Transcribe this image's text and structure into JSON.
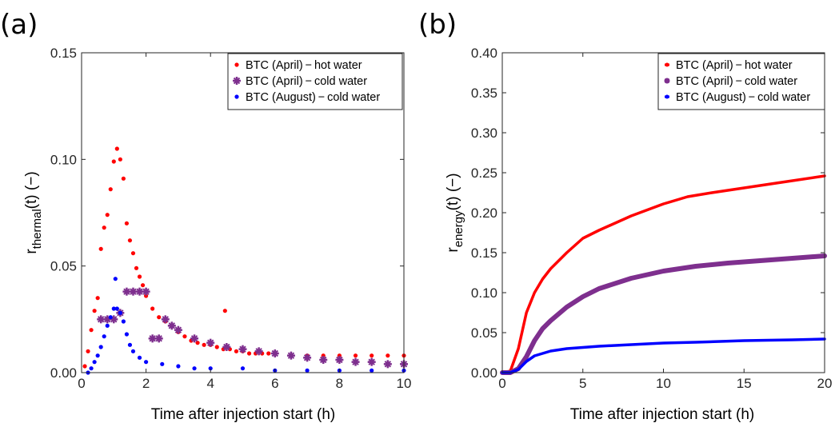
{
  "chart_data": [
    {
      "type": "scatter",
      "panel_label": "(a)",
      "xlabel": "Time after injection start",
      "xunit": "(h)",
      "ylabel_base": "r",
      "ylabel_sub": "thermal",
      "ylabel_arg": "(t)",
      "ylabel_unit": "(−)",
      "xlim": [
        0,
        10
      ],
      "ylim": [
        0,
        0.15
      ],
      "xticks": [
        "0",
        "2",
        "4",
        "6",
        "8",
        "10"
      ],
      "yticks": [
        "0.00",
        "0.05",
        "0.10",
        "0.15"
      ],
      "grid": false,
      "legend_position": "top-right",
      "series": [
        {
          "name": "BTC (April) − hot water",
          "color": "#ff0000",
          "marker": "dot",
          "x": [
            0.1,
            0.2,
            0.3,
            0.4,
            0.5,
            0.6,
            0.7,
            0.8,
            0.9,
            1.0,
            1.1,
            1.2,
            1.3,
            1.4,
            1.5,
            1.6,
            1.7,
            1.8,
            1.9,
            2.0,
            2.2,
            2.4,
            2.6,
            2.8,
            3.0,
            3.2,
            3.4,
            3.6,
            3.8,
            4.0,
            4.2,
            4.4,
            4.45,
            4.6,
            4.8,
            5.0,
            5.2,
            5.4,
            5.6,
            5.8,
            6.0,
            6.5,
            7.0,
            7.5,
            8.0,
            8.5,
            9.0,
            9.5,
            10.0
          ],
          "y": [
            0.003,
            0.01,
            0.02,
            0.029,
            0.035,
            0.058,
            0.068,
            0.074,
            0.086,
            0.099,
            0.105,
            0.1,
            0.091,
            0.07,
            0.062,
            0.056,
            0.049,
            0.045,
            0.041,
            0.036,
            0.03,
            0.026,
            0.024,
            0.022,
            0.019,
            0.017,
            0.015,
            0.014,
            0.013,
            0.013,
            0.012,
            0.011,
            0.029,
            0.011,
            0.01,
            0.01,
            0.009,
            0.009,
            0.009,
            0.009,
            0.009,
            0.008,
            0.008,
            0.008,
            0.008,
            0.008,
            0.008,
            0.008,
            0.008
          ]
        },
        {
          "name": "BTC (April) − cold water",
          "color": "#7e2f8e",
          "marker": "star",
          "x": [
            0.6,
            0.8,
            1.0,
            1.2,
            1.4,
            1.6,
            1.8,
            2.0,
            2.2,
            2.4,
            2.6,
            2.8,
            3.0,
            3.5,
            4.0,
            4.5,
            5.0,
            5.5,
            6.0,
            6.5,
            7.0,
            7.5,
            8.0,
            8.5,
            9.0,
            9.5,
            10.0
          ],
          "y": [
            0.025,
            0.025,
            0.025,
            0.028,
            0.038,
            0.038,
            0.038,
            0.038,
            0.016,
            0.016,
            0.025,
            0.022,
            0.02,
            0.016,
            0.014,
            0.012,
            0.011,
            0.01,
            0.009,
            0.008,
            0.007,
            0.006,
            0.006,
            0.005,
            0.005,
            0.004,
            0.004
          ]
        },
        {
          "name": "BTC (August) − cold water",
          "color": "#0000ff",
          "marker": "dot",
          "x": [
            0.2,
            0.3,
            0.4,
            0.5,
            0.6,
            0.7,
            0.8,
            0.9,
            1.0,
            1.05,
            1.1,
            1.2,
            1.3,
            1.4,
            1.5,
            1.6,
            1.8,
            2.0,
            2.5,
            3.0,
            3.5,
            4.0,
            5.0,
            6.0,
            7.0,
            8.0,
            9.0,
            10.0
          ],
          "y": [
            0.0,
            0.002,
            0.005,
            0.008,
            0.012,
            0.017,
            0.022,
            0.026,
            0.03,
            0.044,
            0.03,
            0.028,
            0.024,
            0.018,
            0.013,
            0.01,
            0.007,
            0.005,
            0.004,
            0.003,
            0.002,
            0.002,
            0.002,
            0.001,
            0.001,
            0.001,
            0.001,
            0.001
          ]
        }
      ]
    },
    {
      "type": "line",
      "panel_label": "(b)",
      "xlabel": "Time after injection start",
      "xunit": "(h)",
      "ylabel_base": "r",
      "ylabel_sub": "energy",
      "ylabel_arg": "(t)",
      "ylabel_unit": "(−)",
      "xlim": [
        0,
        20
      ],
      "ylim": [
        0,
        0.4
      ],
      "xticks": [
        "0",
        "5",
        "10",
        "15",
        "20"
      ],
      "yticks": [
        "0.00",
        "0.05",
        "0.10",
        "0.15",
        "0.20",
        "0.25",
        "0.30",
        "0.35",
        "0.40"
      ],
      "grid": false,
      "legend_position": "top-right",
      "series": [
        {
          "name": "BTC (April) − hot water",
          "color": "#ff0000",
          "x": [
            0,
            0.5,
            1.0,
            1.5,
            2.0,
            2.5,
            3.0,
            4.0,
            5.0,
            6.0,
            8.0,
            10.0,
            11.5,
            13.0,
            15.0,
            17.0,
            20.0
          ],
          "y": [
            0,
            0.002,
            0.03,
            0.075,
            0.1,
            0.117,
            0.13,
            0.15,
            0.168,
            0.178,
            0.196,
            0.211,
            0.22,
            0.225,
            0.231,
            0.237,
            0.246
          ]
        },
        {
          "name": "BTC (April) − cold water",
          "color": "#7e2f8e",
          "x": [
            0,
            0.5,
            1.0,
            1.5,
            2.0,
            2.5,
            3.0,
            4.0,
            5.0,
            6.0,
            8.0,
            10.0,
            12.0,
            14.0,
            16.0,
            18.0,
            20.0
          ],
          "y": [
            0,
            0.0,
            0.005,
            0.02,
            0.04,
            0.055,
            0.065,
            0.082,
            0.095,
            0.105,
            0.118,
            0.127,
            0.133,
            0.137,
            0.14,
            0.143,
            0.146
          ]
        },
        {
          "name": "BTC (August) − cold water",
          "color": "#0000ff",
          "x": [
            0,
            0.5,
            1.0,
            1.5,
            2.0,
            3.0,
            4.0,
            6.0,
            8.0,
            10.0,
            12.0,
            15.0,
            18.0,
            20.0
          ],
          "y": [
            0,
            0.0,
            0.004,
            0.014,
            0.021,
            0.027,
            0.03,
            0.033,
            0.035,
            0.037,
            0.038,
            0.04,
            0.041,
            0.042
          ]
        }
      ]
    }
  ]
}
